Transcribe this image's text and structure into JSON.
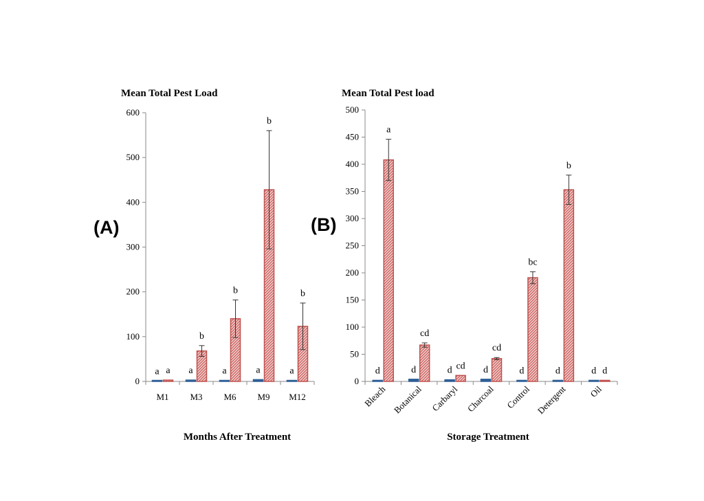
{
  "panels": {
    "a_label": "(A)",
    "b_label": "(B)"
  },
  "chart_data": [
    {
      "type": "bar",
      "panel": "(A)",
      "title": "Mean Total Pest Load",
      "xlabel": "Months After Treatment",
      "ylabel": "",
      "ylim": [
        0,
        600
      ],
      "yticks": [
        0,
        100,
        200,
        300,
        400,
        500,
        600
      ],
      "grid": false,
      "categories": [
        "M1",
        "M3",
        "M6",
        "M9",
        "M12"
      ],
      "series": [
        {
          "color": "#2e5f96",
          "hatch": false,
          "values": [
            1,
            3,
            2,
            4,
            2
          ],
          "sig": [
            "a",
            "a",
            "a",
            "a",
            "a"
          ]
        },
        {
          "color": "#c0504d",
          "hatch": true,
          "values": [
            3,
            68,
            140,
            428,
            123
          ],
          "errors": [
            0,
            12,
            42,
            132,
            52
          ],
          "sig": [
            "a",
            "b",
            "b",
            "b",
            "b"
          ]
        }
      ]
    },
    {
      "type": "bar",
      "panel": "(B)",
      "title": "Mean Total Pest load",
      "xlabel": "Storage Treatment",
      "ylabel": "",
      "ylim": [
        0,
        500
      ],
      "yticks": [
        0,
        50,
        100,
        150,
        200,
        250,
        300,
        350,
        400,
        450,
        500
      ],
      "grid": false,
      "categories": [
        "Bleach",
        "Botanical",
        "Carbaryl",
        "Charcoal",
        "Control",
        "Detergent",
        "Oil"
      ],
      "series": [
        {
          "color": "#2e5f96",
          "hatch": false,
          "values": [
            2,
            4,
            3,
            4,
            2,
            2,
            2
          ],
          "sig": [
            "d",
            "d",
            "d",
            "d",
            "d",
            "d",
            "d"
          ]
        },
        {
          "color": "#c0504d",
          "hatch": true,
          "values": [
            408,
            67,
            11,
            42,
            191,
            353,
            2
          ],
          "errors": [
            38,
            4,
            0,
            2,
            11,
            27,
            0
          ],
          "sig": [
            "a",
            "cd",
            "cd",
            "cd",
            "bc",
            "b",
            "d"
          ]
        }
      ]
    }
  ]
}
